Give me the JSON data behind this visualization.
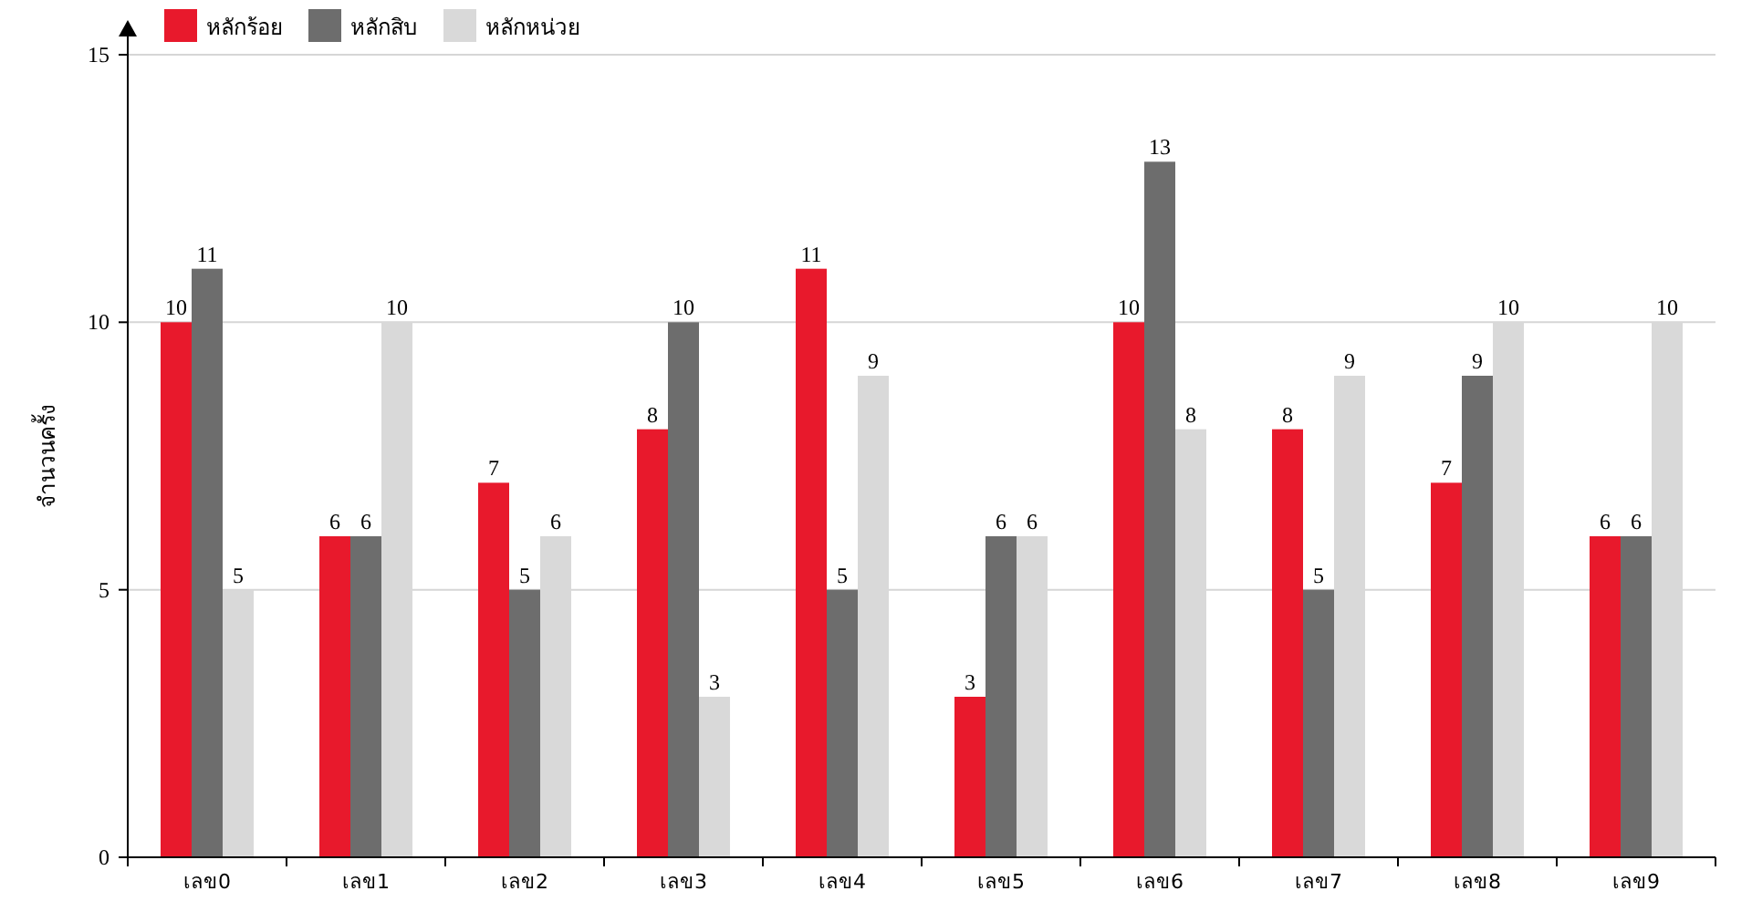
{
  "chart_data": {
    "type": "bar",
    "ylabel": "จำนวนครั้ง",
    "categories": [
      "เลข0",
      "เลข1",
      "เลข2",
      "เลข3",
      "เลข4",
      "เลข5",
      "เลข6",
      "เลข7",
      "เลข8",
      "เลข9"
    ],
    "series": [
      {
        "name": "หลักร้อย",
        "color": "#e8192c",
        "values": [
          10,
          6,
          7,
          8,
          11,
          3,
          10,
          8,
          7,
          6
        ]
      },
      {
        "name": "หลักสิบ",
        "color": "#6d6d6d",
        "values": [
          11,
          6,
          5,
          10,
          5,
          6,
          13,
          5,
          9,
          6
        ]
      },
      {
        "name": "หลักหน่วย",
        "color": "#d9d9d9",
        "values": [
          5,
          10,
          6,
          3,
          9,
          6,
          8,
          9,
          10,
          10
        ]
      }
    ],
    "ylim": [
      0,
      15
    ],
    "yticks": [
      0,
      5,
      10,
      15
    ],
    "grid": "y",
    "legend": "top left",
    "data_labels": true
  }
}
